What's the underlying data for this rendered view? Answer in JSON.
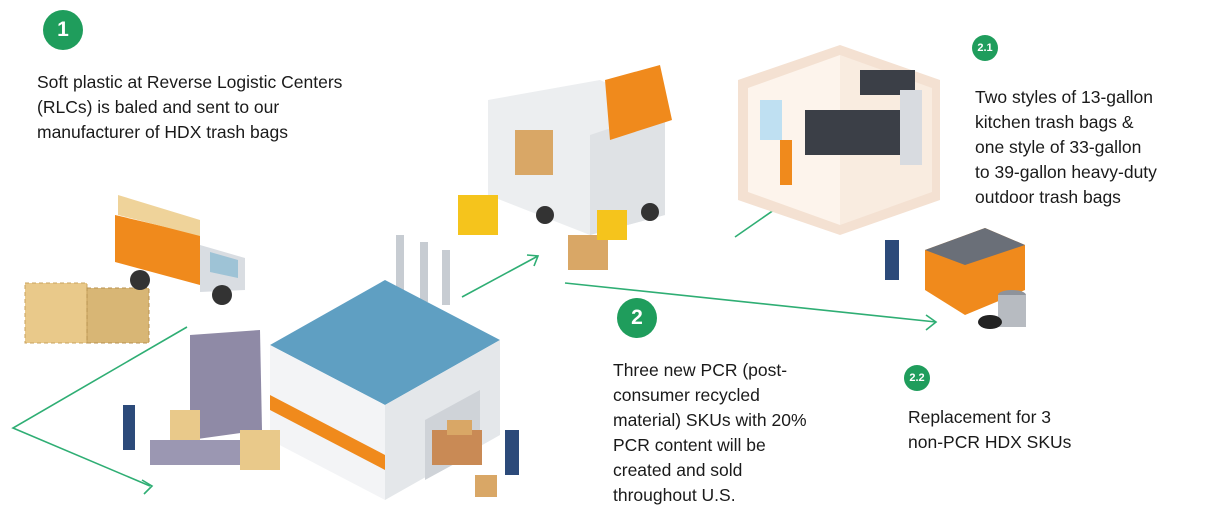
{
  "steps": [
    {
      "badge": "1",
      "lines": [
        "Soft plastic at Reverse Logistic Centers",
        "(RLCs) is baled and sent to our",
        "manufacturer of HDX trash bags"
      ]
    },
    {
      "badge": "2",
      "lines": [
        "Three new PCR (post-",
        "consumer recycled",
        "material) SKUs with 20%",
        "PCR content will be",
        "created and sold",
        "throughout U.S."
      ]
    },
    {
      "badge": "2.1",
      "lines": [
        "Two styles of 13-gallon",
        "kitchen trash bags &",
        "one style of 33-gallon",
        "to 39-gallon heavy-duty",
        "outdoor trash bags"
      ]
    },
    {
      "badge": "2.2",
      "lines": [
        "Replacement for 3",
        "non-PCR HDX SKUs"
      ]
    }
  ]
}
